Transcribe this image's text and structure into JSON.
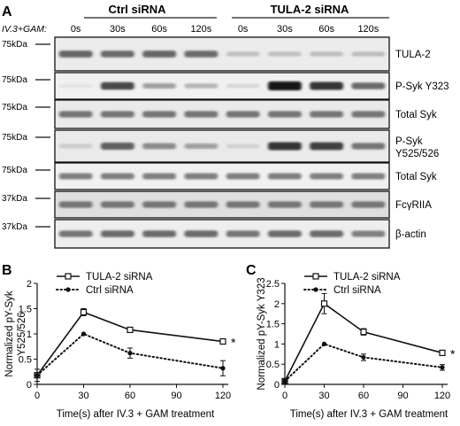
{
  "panel_a": {
    "letter": "A",
    "groups": [
      "Ctrl siRNA",
      "TULA-2 siRNA"
    ],
    "treatment_label": "IV.3+GAM:",
    "times": [
      "0s",
      "30s",
      "60s",
      "120s",
      "0s",
      "30s",
      "60s",
      "120s"
    ],
    "blots": [
      {
        "marker": "75kDa",
        "label": "TULA-2",
        "intensities": [
          0.62,
          0.6,
          0.62,
          0.6,
          0.2,
          0.2,
          0.22,
          0.22
        ],
        "bg": 0.1
      },
      {
        "marker": "75kDa",
        "label": "P-Syk Y323",
        "intensities": [
          0.04,
          0.75,
          0.35,
          0.25,
          0.1,
          1.0,
          0.85,
          0.6
        ],
        "bg": 0.05
      },
      {
        "marker": "75kDa",
        "label": "Total Syk",
        "intensities": [
          0.55,
          0.55,
          0.55,
          0.55,
          0.55,
          0.55,
          0.55,
          0.55
        ],
        "bg": 0.12
      },
      {
        "marker": "75kDa",
        "label": "P-Syk Y525/526",
        "intensities": [
          0.15,
          0.65,
          0.45,
          0.35,
          0.12,
          0.85,
          0.8,
          0.55
        ],
        "bg": 0.12
      },
      {
        "marker": "75kDa",
        "label": "Total Syk",
        "intensities": [
          0.5,
          0.5,
          0.5,
          0.5,
          0.5,
          0.5,
          0.5,
          0.5
        ],
        "bg": 0.05
      },
      {
        "marker": "37kDa",
        "label": "FcγRIIA",
        "intensities": [
          0.55,
          0.55,
          0.55,
          0.55,
          0.55,
          0.55,
          0.55,
          0.55
        ],
        "bg": 0.25
      },
      {
        "marker": "37kDa",
        "label": "β-actin",
        "intensities": [
          0.55,
          0.6,
          0.6,
          0.6,
          0.55,
          0.6,
          0.6,
          0.5
        ],
        "bg": 0.08
      }
    ]
  },
  "panel_b": {
    "letter": "B",
    "significance": "*",
    "chart_data": {
      "type": "line",
      "xlabel": "Time(s) after IV.3 + GAM treatment",
      "ylabel": "Normalized pY-Syk Y525/526",
      "ylabel_lines": [
        "Normalized pY-Syk",
        "Y525/526"
      ],
      "x": [
        0,
        30,
        60,
        120
      ],
      "xticks": [
        "0",
        "30",
        "60",
        "90",
        "120"
      ],
      "xlim": [
        0,
        120
      ],
      "yticks": [
        "0",
        "0.5",
        "1",
        "1.5",
        "2"
      ],
      "ylim": [
        0,
        2
      ],
      "legend_position": "top",
      "series": [
        {
          "name": "TULA-2 siRNA",
          "style": "solid",
          "marker": "open-square",
          "values": [
            0.18,
            1.43,
            1.08,
            0.85
          ],
          "errors": [
            0.05,
            0.07,
            0.03,
            0.05
          ]
        },
        {
          "name": "Ctrl siRNA",
          "style": "dotted",
          "marker": "filled-circle",
          "values": [
            0.18,
            1.0,
            0.62,
            0.32
          ],
          "errors": [
            0.12,
            0.0,
            0.1,
            0.15
          ]
        }
      ]
    }
  },
  "panel_c": {
    "letter": "C",
    "significance": "*",
    "chart_data": {
      "type": "line",
      "xlabel": "Time(s) after IV.3 + GAM treatment",
      "ylabel": "Normalized pY-Syk Y323",
      "ylabel_lines": [
        "Normalized pY-Syk Y323"
      ],
      "x": [
        0,
        30,
        60,
        120
      ],
      "xticks": [
        "0",
        "30",
        "60",
        "90",
        "120"
      ],
      "xlim": [
        0,
        120
      ],
      "yticks": [
        "0",
        "0.5",
        "1",
        "1.5",
        "2",
        "2.5"
      ],
      "ylim": [
        0,
        2.5
      ],
      "legend_position": "top",
      "series": [
        {
          "name": "TULA-2 siRNA",
          "style": "solid",
          "marker": "open-square",
          "values": [
            0.08,
            2.0,
            1.3,
            0.78
          ],
          "errors": [
            0.05,
            0.25,
            0.08,
            0.03
          ]
        },
        {
          "name": "Ctrl siRNA",
          "style": "dotted",
          "marker": "filled-circle",
          "values": [
            0.08,
            1.0,
            0.67,
            0.42
          ],
          "errors": [
            0.05,
            0.0,
            0.08,
            0.07
          ]
        }
      ]
    }
  }
}
